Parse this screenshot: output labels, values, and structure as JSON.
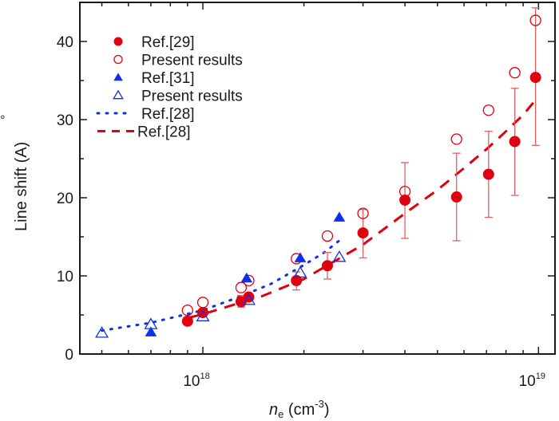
{
  "chart_data": {
    "type": "scatter",
    "title": "",
    "xlabel": "n_e (cm^-3)",
    "xlabel_parts": {
      "n": "n",
      "sub": "e",
      "unit_pre": " (cm",
      "sup": "-3",
      "unit_post": ")"
    },
    "ylabel": "Line shift (Å)",
    "ylabel_parts": {
      "text": "Line shift (A)",
      "ring": "°"
    },
    "x_scale": "log",
    "xlim": [
      4.3e+17,
      1.12e+19
    ],
    "ylim": [
      0,
      45
    ],
    "x_ticks": [
      {
        "value": 1e+18,
        "base": "10",
        "exp": "18"
      },
      {
        "value": 1e+19,
        "base": "10",
        "exp": "19"
      }
    ],
    "y_ticks": [
      0,
      10,
      20,
      30,
      40
    ],
    "y_minor_ticks": [
      5,
      15,
      25,
      35
    ],
    "grid": false,
    "legend_position": "top-left",
    "colors": {
      "red": "#e0000f",
      "red_light": "#e06060",
      "blue": "#1030e8",
      "axis": "#1a1a1a"
    },
    "series": [
      {
        "name": "Ref.[29]",
        "marker": "filled-circle",
        "color": "#e0000f",
        "x": [
          9e+17,
          1e+18,
          1.3e+18,
          1.37e+18,
          1.9e+18,
          2.35e+18,
          3e+18,
          4e+18,
          5.7e+18,
          7.1e+18,
          8.5e+18,
          9.8e+18
        ],
        "y": [
          4.2,
          5.3,
          6.7,
          7.3,
          9.4,
          11.3,
          15.5,
          19.7,
          20.1,
          23.0,
          27.2,
          35.4
        ],
        "err_low": [
          null,
          null,
          6.0,
          null,
          8.2,
          9.6,
          12.3,
          14.8,
          14.5,
          17.5,
          20.3,
          26.7
        ],
        "err_high": [
          null,
          null,
          7.5,
          null,
          10.5,
          13.0,
          18.5,
          24.5,
          25.7,
          28.5,
          34.0,
          44.3
        ]
      },
      {
        "name": "Present results",
        "marker": "open-circle",
        "color": "#e0000f",
        "x": [
          9e+17,
          1e+18,
          1.3e+18,
          1.37e+18,
          1.9e+18,
          2.35e+18,
          3e+18,
          4e+18,
          5.7e+18,
          7.1e+18,
          8.5e+18,
          9.8e+18
        ],
        "y": [
          5.6,
          6.6,
          8.5,
          9.4,
          12.2,
          15.1,
          18.0,
          20.8,
          27.5,
          31.2,
          36.0,
          42.7
        ]
      },
      {
        "name": "Ref.[31]",
        "marker": "filled-triangle",
        "color": "#1030e8",
        "x": [
          7e+17,
          1.35e+18,
          1.95e+18,
          2.55e+18
        ],
        "y": [
          2.8,
          9.7,
          12.3,
          17.5
        ]
      },
      {
        "name": "Present results",
        "marker": "open-triangle",
        "color": "#1030e8",
        "x": [
          5e+17,
          7e+17,
          1e+18,
          1.37e+18,
          1.95e+18,
          2.55e+18
        ],
        "y": [
          2.7,
          3.8,
          4.8,
          6.9,
          10.4,
          12.4
        ]
      },
      {
        "name": "Ref.[28]",
        "marker": "dotted-line",
        "color": "#1030e8",
        "x": [
          5e+17,
          7e+17,
          1e+18,
          1.3e+18,
          1.6e+18,
          2e+18,
          2.3e+18,
          2.6e+18
        ],
        "y": [
          3.0,
          4.0,
          5.6,
          7.4,
          9.0,
          11.4,
          13.0,
          14.8
        ]
      },
      {
        "name": "Ref.[28]",
        "marker": "dashed-line",
        "color": "#e0000f",
        "x": [
          9e+17,
          1e+18,
          1.5e+18,
          2e+18,
          3e+18,
          4e+18,
          5e+18,
          6e+18,
          7e+18,
          8e+18,
          9e+18,
          9.8e+18
        ],
        "y": [
          4.6,
          5.1,
          7.4,
          9.6,
          14.0,
          18.0,
          21.0,
          23.8,
          26.2,
          28.5,
          30.6,
          32.5
        ]
      }
    ]
  }
}
